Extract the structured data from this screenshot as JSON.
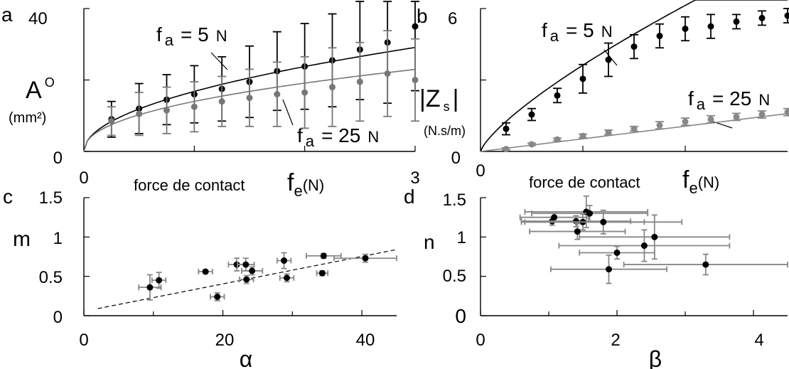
{
  "chart_data": [
    {
      "panel": "a",
      "type": "scatter",
      "xlabel": "force de contact",
      "xlabel_sym": "f",
      "xlabel_sub": "e",
      "xlabel_unit": "(N)",
      "ylabel": "A",
      "ylabel_sup": "O",
      "ylabel_unit": "(mm²)",
      "xlim": [
        0,
        3
      ],
      "ylim": [
        0,
        40
      ],
      "xticks": [
        "0",
        "3"
      ],
      "yticks": [
        "0",
        "40"
      ],
      "annotations": [
        {
          "sym": "f",
          "sub": "a",
          "rest": "= 5",
          "unit": "N"
        },
        {
          "sym": "f",
          "sub": "a",
          "rest": "= 25",
          "unit": "N"
        }
      ],
      "series": [
        {
          "name": "f_a = 5 N",
          "color": "#000000",
          "x": [
            0.25,
            0.5,
            0.75,
            1.0,
            1.25,
            1.5,
            1.75,
            2.0,
            2.25,
            2.5,
            2.75,
            3.0
          ],
          "y": [
            9.0,
            12.0,
            14.5,
            16.0,
            17.5,
            19.5,
            22.5,
            23.8,
            25.5,
            28.5,
            30.5,
            35.0
          ],
          "err": [
            5.0,
            7.0,
            7.0,
            8.0,
            9.0,
            10.0,
            11.0,
            12.0,
            13.0,
            14.0,
            17.0,
            18.0
          ],
          "fit_coef": 16.8,
          "fit_exp": 0.5
        },
        {
          "name": "f_a = 25 N",
          "color": "#777777",
          "x": [
            0.25,
            0.5,
            0.75,
            1.0,
            1.25,
            1.5,
            1.75,
            2.0,
            2.25,
            2.5,
            2.75,
            3.0
          ],
          "y": [
            8.5,
            10.5,
            11.5,
            12.5,
            14.0,
            15.0,
            16.0,
            16.5,
            18.0,
            19.5,
            21.8,
            20.0
          ],
          "err": [
            4.0,
            6.0,
            6.5,
            7.0,
            7.0,
            8.0,
            9.0,
            10.0,
            11.0,
            11.0,
            12.0,
            11.5
          ],
          "fit_coef": 14.0,
          "fit_exp": 0.45
        }
      ]
    },
    {
      "panel": "b",
      "type": "scatter",
      "xlabel": "force de contact",
      "xlabel_sym": "f",
      "xlabel_sub": "e",
      "xlabel_unit": "(N)",
      "ylabel": "|Z",
      "ylabel_sub": "s",
      "ylabel_end": "|",
      "ylabel_unit": "(N.s/m)",
      "xlim": [
        0,
        3
      ],
      "ylim": [
        0,
        6
      ],
      "xticks": [
        "0"
      ],
      "yticks": [
        "0",
        "6"
      ],
      "annotations": [
        {
          "sym": "f",
          "sub": "a",
          "rest": "= 5",
          "unit": "N"
        },
        {
          "sym": "f",
          "sub": "a",
          "rest": "= 25",
          "unit": "N"
        }
      ],
      "series": [
        {
          "name": "f_a = 5 N",
          "color": "#000000",
          "x": [
            0.25,
            0.5,
            0.75,
            1.0,
            1.25,
            1.5,
            1.75,
            2.0,
            2.25,
            2.5,
            2.75,
            3.0
          ],
          "y": [
            0.95,
            1.55,
            2.35,
            3.05,
            3.85,
            4.4,
            4.85,
            5.15,
            5.25,
            5.45,
            5.6,
            5.7
          ],
          "err": [
            0.25,
            0.25,
            0.3,
            0.6,
            0.7,
            0.5,
            0.5,
            0.5,
            0.5,
            0.3,
            0.3,
            0.3
          ],
          "fit_coef": 3.62,
          "fit_exp": 0.76
        },
        {
          "name": "f_a = 25 N",
          "color": "#888888",
          "x": [
            0.25,
            0.5,
            0.75,
            1.0,
            1.25,
            1.5,
            1.75,
            2.0,
            2.25,
            2.5,
            2.75,
            3.0
          ],
          "y": [
            0.1,
            0.3,
            0.5,
            0.65,
            0.8,
            0.95,
            1.1,
            1.25,
            1.35,
            1.45,
            1.55,
            1.65
          ],
          "err": [
            0.05,
            0.05,
            0.06,
            0.08,
            0.1,
            0.1,
            0.15,
            0.15,
            0.15,
            0.15,
            0.15,
            0.15
          ],
          "fit_coef": 0.53,
          "fit_exp": 1.0
        }
      ]
    },
    {
      "panel": "c",
      "type": "scatter",
      "xlabel": "α",
      "ylabel": "m",
      "xlim": [
        0,
        45
      ],
      "ylim": [
        0,
        1.5
      ],
      "xticks": [
        "0",
        "20",
        "40"
      ],
      "yticks": [
        "0",
        "0.5",
        "1",
        "1.5"
      ],
      "trend": {
        "x": [
          2,
          45
        ],
        "y": [
          0.09,
          0.84
        ],
        "style": "dashed"
      },
      "points": [
        {
          "x": 9.5,
          "y": 0.36,
          "xerr": 1.6,
          "yerr": 0.16
        },
        {
          "x": 10.8,
          "y": 0.45,
          "xerr": 1.0,
          "yerr": 0.1
        },
        {
          "x": 17.5,
          "y": 0.56,
          "xerr": 1.0,
          "yerr": 0.02
        },
        {
          "x": 19.2,
          "y": 0.24,
          "xerr": 1.0,
          "yerr": 0.05
        },
        {
          "x": 22.0,
          "y": 0.65,
          "xerr": 1.2,
          "yerr": 0.08
        },
        {
          "x": 23.3,
          "y": 0.65,
          "xerr": 1.2,
          "yerr": 0.08
        },
        {
          "x": 23.4,
          "y": 0.46,
          "xerr": 1.0,
          "yerr": 0.05
        },
        {
          "x": 24.2,
          "y": 0.57,
          "xerr": 1.5,
          "yerr": 0.05
        },
        {
          "x": 28.8,
          "y": 0.7,
          "xerr": 1.0,
          "yerr": 0.1
        },
        {
          "x": 29.2,
          "y": 0.48,
          "xerr": 1.0,
          "yerr": 0.05
        },
        {
          "x": 34.3,
          "y": 0.54,
          "xerr": 0.8,
          "yerr": 0.03
        },
        {
          "x": 34.5,
          "y": 0.76,
          "xerr": 2.5,
          "yerr": 0.03
        },
        {
          "x": 40.5,
          "y": 0.73,
          "xerr": 4.5,
          "yerr": 0.05
        }
      ]
    },
    {
      "panel": "d",
      "type": "scatter",
      "xlabel": "β",
      "ylabel": "n",
      "xlim": [
        0,
        4.5
      ],
      "ylim": [
        0,
        1.5
      ],
      "xticks": [
        "0",
        "2",
        "4"
      ],
      "yticks": [
        "0",
        "0.5",
        "1",
        "1.5"
      ],
      "points": [
        {
          "x": 1.05,
          "y": 1.2,
          "xerr": 0.45,
          "yerr": 0.05
        },
        {
          "x": 1.08,
          "y": 1.25,
          "xerr": 0.5,
          "yerr": 0.05
        },
        {
          "x": 1.4,
          "y": 1.2,
          "xerr": 0.8,
          "yerr": 0.07
        },
        {
          "x": 1.42,
          "y": 1.07,
          "xerr": 0.7,
          "yerr": 0.1
        },
        {
          "x": 1.5,
          "y": 1.19,
          "xerr": 0.9,
          "yerr": 0.1
        },
        {
          "x": 1.55,
          "y": 1.32,
          "xerr": 0.9,
          "yerr": 0.2
        },
        {
          "x": 1.6,
          "y": 1.3,
          "xerr": 0.85,
          "yerr": 0.1
        },
        {
          "x": 1.8,
          "y": 1.19,
          "xerr": 1.15,
          "yerr": 0.15
        },
        {
          "x": 1.88,
          "y": 0.59,
          "xerr": 0.85,
          "yerr": 0.18
        },
        {
          "x": 2.0,
          "y": 0.8,
          "xerr": 0.55,
          "yerr": 0.08
        },
        {
          "x": 2.4,
          "y": 0.89,
          "xerr": 1.25,
          "yerr": 0.2
        },
        {
          "x": 2.55,
          "y": 1.0,
          "xerr": 1.1,
          "yerr": 0.28
        },
        {
          "x": 3.3,
          "y": 0.65,
          "xerr": 1.2,
          "yerr": 0.13
        }
      ]
    }
  ],
  "panel_labels": [
    "a",
    "b",
    "c",
    "d"
  ]
}
